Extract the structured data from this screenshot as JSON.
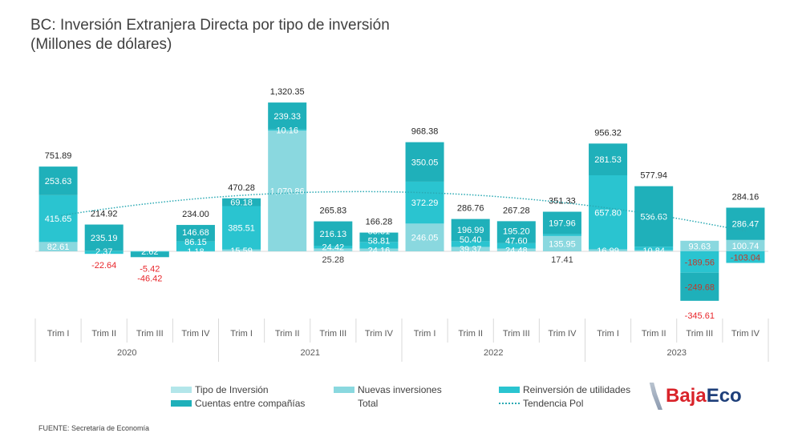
{
  "chart_data": {
    "type": "bar",
    "stacked": true,
    "title": "BC: Inversión Extranjera Directa por tipo de inversión",
    "subtitle": "(Millones de dólares)",
    "categories": [
      "Trim I",
      "Trim II",
      "Trim III",
      "Trim IV",
      "Trim I",
      "Trim II",
      "Trim III",
      "Trim IV",
      "Trim I",
      "Trim II",
      "Trim III",
      "Trim IV",
      "Trim I",
      "Trim II",
      "Trim III",
      "Trim IV"
    ],
    "groups": [
      {
        "label": "2020",
        "span": 4
      },
      {
        "label": "2021",
        "span": 4
      },
      {
        "label": "2022",
        "span": 4
      },
      {
        "label": "2023",
        "span": 4
      }
    ],
    "series": [
      {
        "name": "Nuevas inversiones",
        "color": "#8ad8df",
        "values": [
          82.61,
          2.37,
          2.62,
          1.18,
          15.59,
          1070.86,
          25.28,
          24.16,
          246.05,
          39.37,
          24.48,
          135.95,
          16.99,
          10.84,
          93.63,
          100.74
        ]
      },
      {
        "name": "Reinversión de utilidades",
        "color": "#2ac4d0",
        "values": [
          415.65,
          -22.64,
          -5.42,
          86.15,
          385.51,
          10.16,
          24.42,
          58.81,
          372.29,
          50.4,
          47.6,
          17.41,
          657.8,
          30.47,
          -189.56,
          -103.04
        ]
      },
      {
        "name": "Cuentas entre compañías",
        "color": "#1fb0ba",
        "values": [
          253.63,
          235.19,
          -46.42,
          146.68,
          69.18,
          239.33,
          216.13,
          83.31,
          350.05,
          196.99,
          195.2,
          197.96,
          281.53,
          536.63,
          -249.68,
          286.47
        ]
      }
    ],
    "labels_shown": [
      [
        "82.61",
        "415.65",
        "253.63"
      ],
      [
        "2.37",
        "-22.64",
        "235.19"
      ],
      [
        "2.62",
        "-5.42",
        "-46.42"
      ],
      [
        "1.18",
        "86.15",
        "146.68"
      ],
      [
        "15.59",
        "385.51",
        "69.18"
      ],
      [
        "1,070.86",
        "10.16",
        "239.33"
      ],
      [
        "25.28",
        "24.42",
        "216.13"
      ],
      [
        "24.16",
        "58.81",
        "83.31"
      ],
      [
        "246.05",
        "372.29",
        "350.05"
      ],
      [
        "39.37",
        "50.40",
        "196.99"
      ],
      [
        "24.48",
        "47.60",
        "195.20"
      ],
      [
        "135.95",
        "17.41",
        "197.96"
      ],
      [
        "16.99",
        "657.80",
        "281.53"
      ],
      [
        "10.84",
        "",
        "536.63"
      ],
      [
        "93.63",
        "-189.56",
        "-249.68"
      ],
      [
        "100.74",
        "-103.04",
        "286.47"
      ]
    ],
    "totals": [
      "751.89",
      "214.92",
      "",
      "234.00",
      "470.28",
      "1,320.35",
      "265.83",
      "166.28",
      "968.38",
      "286.76",
      "267.28",
      "351.33",
      "956.32",
      "577.94",
      "-345.61",
      "284.16"
    ],
    "trendline": {
      "name": "Tendencia Pol",
      "type": "polynomial",
      "color": "#2aa9b3"
    },
    "negative_label_color": "#e8262b",
    "ylim": [
      -400,
      1400
    ],
    "grid": false,
    "legend": {
      "placement": "bottom",
      "items": [
        {
          "name": "Tipo de Inversión",
          "color": "#b3e6ea"
        },
        {
          "name": "Nuevas inversiones",
          "color": "#8ad8df"
        },
        {
          "name": "Reinversión de utilidades",
          "color": "#2ac4d0"
        },
        {
          "name": "Cuentas entre compañías",
          "color": "#1fb0ba"
        },
        {
          "name": "Total",
          "color": ""
        },
        {
          "name": "Tendencia Pol",
          "color": "#2aa9b3"
        }
      ]
    }
  },
  "source": "FUENTE: Secretaría de Economía",
  "logo": {
    "text_red": "Baja",
    "text_blue": "Eco"
  }
}
